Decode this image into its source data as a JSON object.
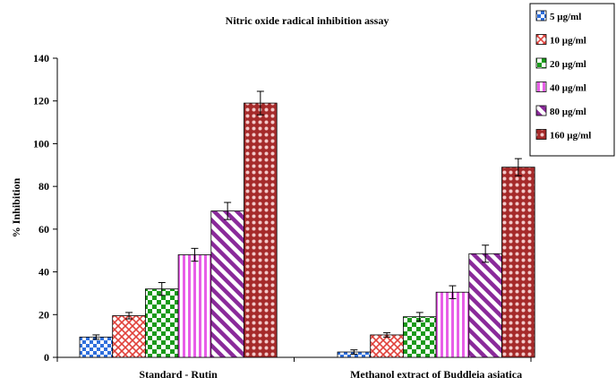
{
  "chart_data": {
    "type": "bar",
    "title": "Nitric oxide radical inhibition assay",
    "ylabel": "% Inhibition",
    "xlabel": "",
    "categories": [
      "Standard - Rutin",
      "Methanol extract of Buddleia asiatica"
    ],
    "ylim": [
      0,
      140
    ],
    "yticks": [
      0,
      20,
      40,
      60,
      80,
      100,
      120,
      140
    ],
    "grid": false,
    "legend_position": "top-right",
    "series": [
      {
        "name": "5 µg/ml",
        "values": [
          9.5,
          2.5
        ],
        "errors": [
          1,
          1
        ],
        "color": "#2f6fdc",
        "pattern": "checker"
      },
      {
        "name": "10 µg/ml",
        "values": [
          19.5,
          10.5
        ],
        "errors": [
          1.5,
          1
        ],
        "color": "#e0403a",
        "pattern": "diamond"
      },
      {
        "name": "20 µg/ml",
        "values": [
          32,
          19
        ],
        "errors": [
          3,
          2
        ],
        "color": "#1a9a1a",
        "pattern": "checker"
      },
      {
        "name": "40 µg/ml",
        "values": [
          48,
          30.5
        ],
        "errors": [
          3,
          3
        ],
        "color": "#e85ee8",
        "pattern": "vstripe"
      },
      {
        "name": "80 µg/ml",
        "values": [
          68.5,
          48.5
        ],
        "errors": [
          4,
          4
        ],
        "color": "#8a2a9a",
        "pattern": "diag"
      },
      {
        "name": "160 µg/ml",
        "values": [
          119,
          89
        ],
        "errors": [
          5.5,
          4
        ],
        "color": "#a52a2a",
        "pattern": "dots"
      }
    ]
  }
}
